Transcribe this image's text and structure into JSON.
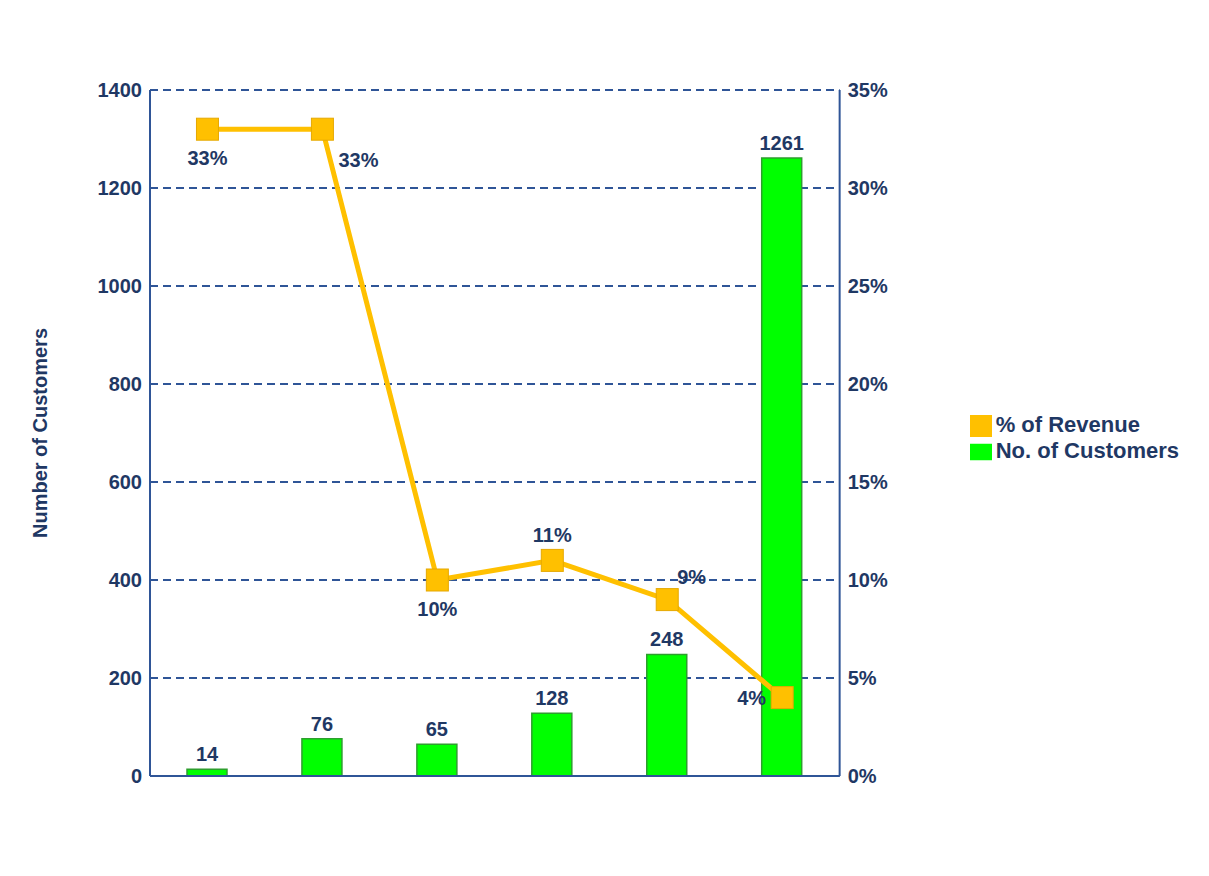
{
  "chart_data": {
    "type": "bar",
    "categories": [
      null,
      null,
      null,
      null,
      null,
      null
    ],
    "y_label": "Number of Customers",
    "ylim": [
      0,
      1400
    ],
    "yticks": [
      0,
      200,
      400,
      600,
      800,
      1000,
      1200,
      1400
    ],
    "y2lim": [
      0,
      35
    ],
    "y2ticks": [
      {
        "value": 0,
        "label": "0%"
      },
      {
        "value": 5,
        "label": "5%"
      },
      {
        "value": 10,
        "label": "10%"
      },
      {
        "value": 15,
        "label": "15%"
      },
      {
        "value": 20,
        "label": "20%"
      },
      {
        "value": 25,
        "label": "25%"
      },
      {
        "value": 30,
        "label": "30%"
      },
      {
        "value": 35,
        "label": "35%"
      }
    ],
    "grid": true,
    "legend": "right",
    "data_labels": true,
    "series": [
      {
        "name": "No. of Customers",
        "type": "bar",
        "color": "#00ff00",
        "values": [
          14,
          76,
          65,
          128,
          248,
          1261
        ]
      },
      {
        "name": "% of Revenue",
        "type": "line",
        "axis": "y2",
        "color": "#ffc000",
        "marker": "square",
        "values": [
          33,
          33,
          10,
          11,
          9,
          4
        ],
        "value_labels": [
          "33%",
          "33%",
          "10%",
          "11%",
          "9%",
          "4%"
        ]
      }
    ]
  }
}
